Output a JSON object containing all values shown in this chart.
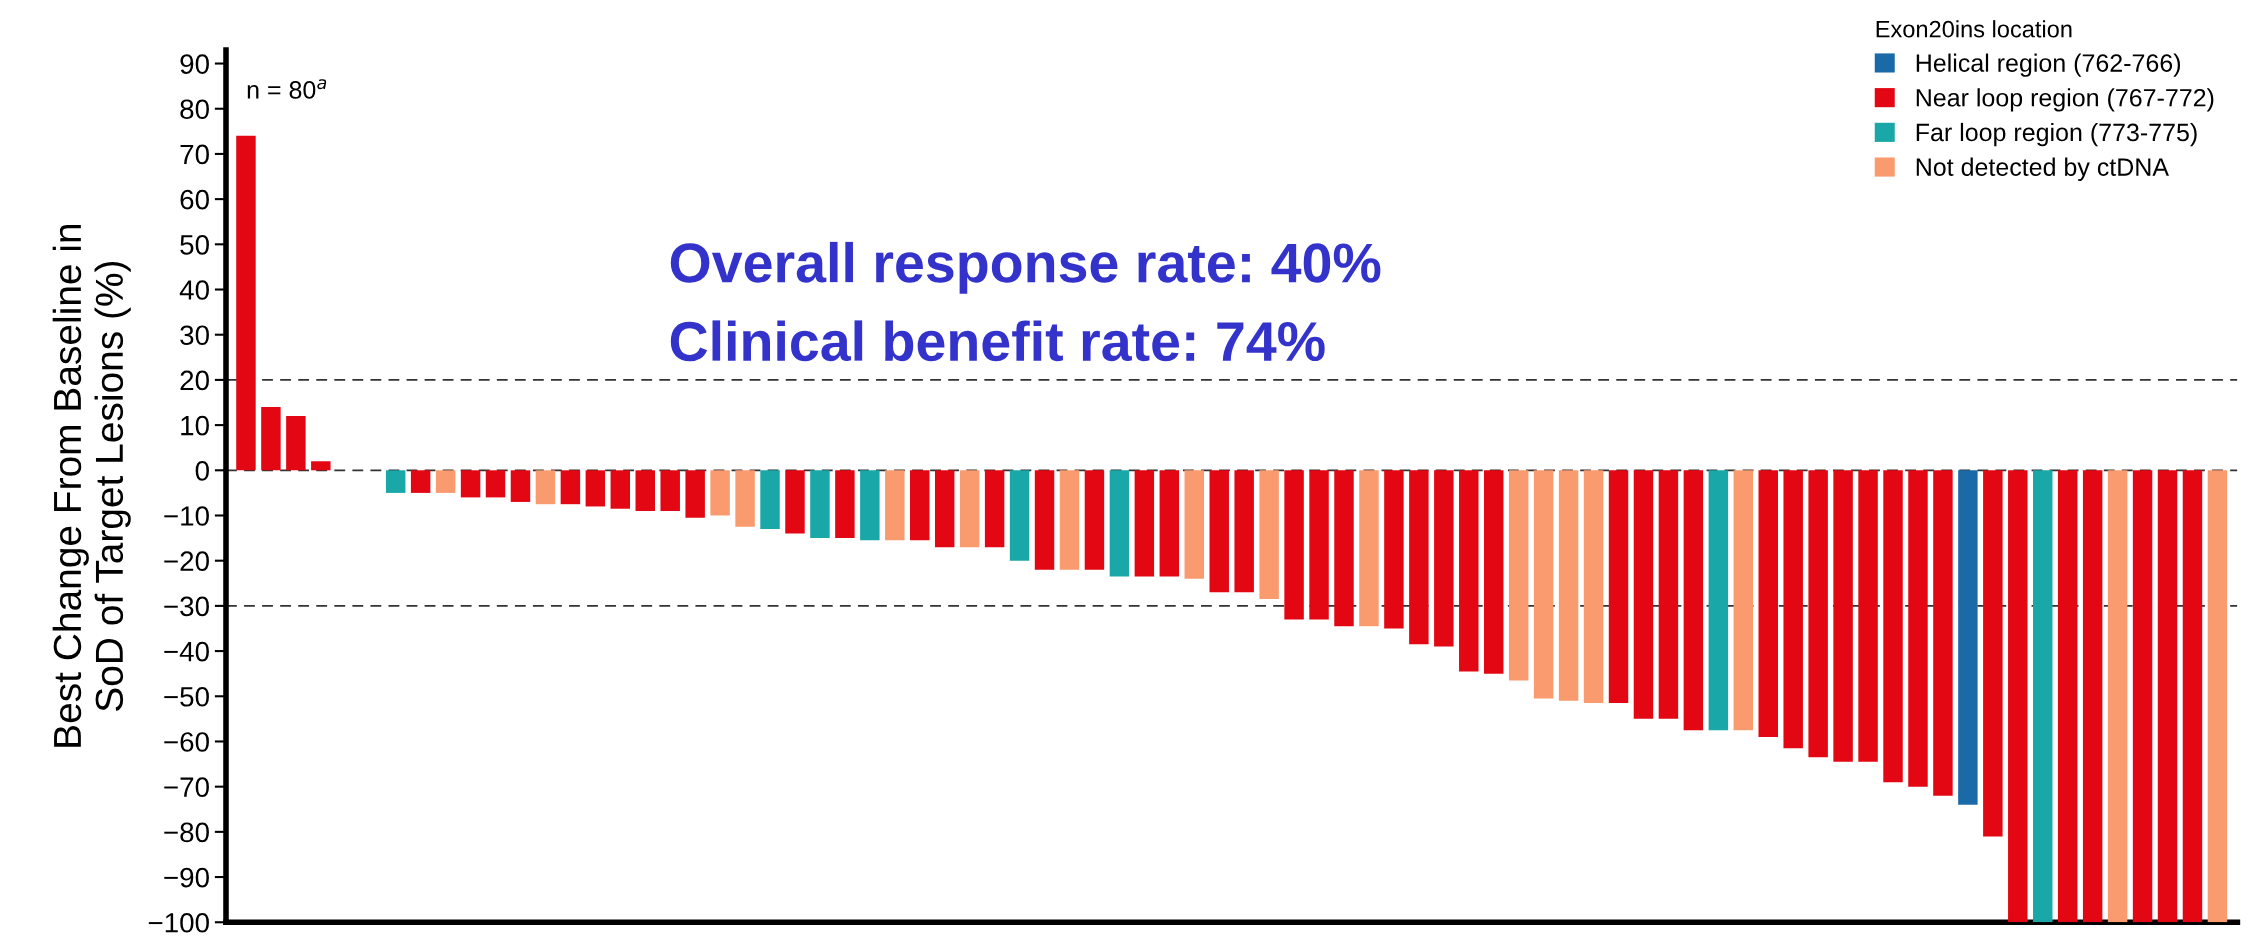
{
  "chart_data": {
    "type": "bar",
    "ylabel": "Best Change From Baseline in\nSoD of Target Lesions (%)",
    "legend_title": "Exon20ins location",
    "annotations": [
      "n = 80$^{a}$",
      "Overall response rate: 40%",
      "Clinical benefit rate: 74%"
    ],
    "categories": [
      null,
      null,
      null,
      null,
      null,
      null,
      null,
      null,
      null,
      null,
      null,
      null,
      null,
      null,
      null,
      null,
      null,
      null,
      null,
      null,
      null,
      null,
      null,
      null,
      null,
      null,
      null,
      null,
      null,
      null,
      null,
      null,
      null,
      null,
      null,
      null,
      null,
      null,
      null,
      null,
      null,
      null,
      null,
      null,
      null,
      null,
      null,
      null,
      null,
      null,
      null,
      null,
      null,
      null,
      null,
      null,
      null,
      null,
      null,
      null,
      null,
      null,
      null,
      null,
      null,
      null,
      null,
      null,
      null,
      null,
      null,
      null,
      null,
      null,
      null,
      null,
      null,
      null,
      null,
      null
    ],
    "series": [
      {
        "name": "Helical region (762-766)",
        "color": "#1b6aa8",
        "values": [
          null,
          null,
          null,
          null,
          null,
          null,
          null,
          null,
          null,
          null,
          null,
          null,
          null,
          null,
          null,
          null,
          null,
          null,
          null,
          null,
          null,
          null,
          null,
          null,
          null,
          null,
          null,
          null,
          null,
          null,
          null,
          null,
          null,
          null,
          null,
          null,
          null,
          null,
          null,
          null,
          null,
          null,
          null,
          null,
          null,
          null,
          null,
          null,
          null,
          null,
          null,
          null,
          null,
          null,
          null,
          null,
          null,
          null,
          null,
          null,
          null,
          null,
          null,
          null,
          null,
          null,
          null,
          null,
          null,
          -74,
          null,
          null,
          null,
          null,
          null,
          null,
          null,
          null,
          null,
          null
        ]
      },
      {
        "name": "Near loop region (767-772)",
        "color": "#e30613",
        "values": [
          74,
          14,
          12,
          2,
          null,
          null,
          null,
          -5,
          null,
          -6,
          -6,
          -7,
          null,
          -7.5,
          -8,
          -8.5,
          -9,
          -9,
          -10.5,
          null,
          null,
          null,
          -14,
          null,
          -15,
          null,
          null,
          -15.5,
          -17,
          null,
          -17,
          null,
          -22,
          null,
          -22,
          null,
          -23.5,
          -23.5,
          null,
          -27,
          -27,
          null,
          -33,
          -33,
          -34.5,
          null,
          -35,
          -38.5,
          -39,
          -44.5,
          -45,
          null,
          null,
          null,
          null,
          -51.5,
          -55,
          -55,
          -57.5,
          null,
          null,
          -59,
          -61.5,
          -63.5,
          -64.5,
          -64.5,
          -69,
          -70,
          -72,
          null,
          -81,
          -100,
          null,
          -100,
          -100,
          null,
          -100,
          -100,
          -100,
          null
        ]
      },
      {
        "name": "Far loop region (773-775)",
        "color": "#1aa7a7",
        "values": [
          null,
          null,
          null,
          null,
          null,
          null,
          -5,
          null,
          null,
          null,
          null,
          null,
          null,
          null,
          null,
          null,
          null,
          null,
          null,
          null,
          null,
          -13,
          null,
          -15,
          null,
          -15.5,
          null,
          null,
          null,
          null,
          null,
          -20,
          null,
          null,
          null,
          -23.5,
          null,
          null,
          null,
          null,
          null,
          null,
          null,
          null,
          null,
          null,
          null,
          null,
          null,
          null,
          null,
          null,
          null,
          null,
          null,
          null,
          null,
          null,
          null,
          -57.5,
          null,
          null,
          null,
          null,
          null,
          null,
          null,
          null,
          null,
          null,
          null,
          null,
          -100,
          null,
          null,
          null,
          null,
          null,
          null,
          null
        ]
      },
      {
        "name": "Not detected by ctDNA",
        "color": "#f99b6e",
        "values": [
          null,
          null,
          null,
          null,
          null,
          null,
          null,
          null,
          -5,
          null,
          null,
          null,
          -7.5,
          null,
          null,
          null,
          null,
          null,
          null,
          -10,
          -12.5,
          null,
          null,
          null,
          null,
          null,
          -15.5,
          null,
          null,
          -17,
          null,
          null,
          null,
          -22,
          null,
          null,
          null,
          null,
          -24,
          null,
          null,
          -28.5,
          null,
          null,
          null,
          -34.5,
          null,
          null,
          null,
          null,
          null,
          -46.5,
          -50.5,
          -51,
          -51.5,
          null,
          null,
          null,
          null,
          null,
          -57.5,
          null,
          null,
          null,
          null,
          null,
          null,
          null,
          null,
          null,
          null,
          null,
          null,
          null,
          null,
          -100,
          null,
          null,
          null,
          -100
        ]
      }
    ],
    "ylim": [
      -100,
      93
    ],
    "yticks": [
      {
        "value": -100,
        "label": "−100"
      },
      {
        "value": -90,
        "label": "−90"
      },
      {
        "value": -80,
        "label": "−80"
      },
      {
        "value": -70,
        "label": "−70"
      },
      {
        "value": -60,
        "label": "−60"
      },
      {
        "value": -50,
        "label": "−50"
      },
      {
        "value": -40,
        "label": "−40"
      },
      {
        "value": -30,
        "label": "−30"
      },
      {
        "value": -20,
        "label": "−20"
      },
      {
        "value": -10,
        "label": "−10"
      },
      0,
      10,
      20,
      30,
      40,
      50,
      60,
      70,
      80,
      90
    ],
    "ref_lines": [
      {
        "axis": "y",
        "value": 20,
        "color": "#333333",
        "line_style": "dashed"
      },
      {
        "axis": "y",
        "value": 0,
        "color": "#333333",
        "line_style": "dashed"
      },
      {
        "axis": "y",
        "value": -30,
        "color": "#333333",
        "line_style": "dashed"
      }
    ],
    "legend": "top right",
    "grid": false
  }
}
